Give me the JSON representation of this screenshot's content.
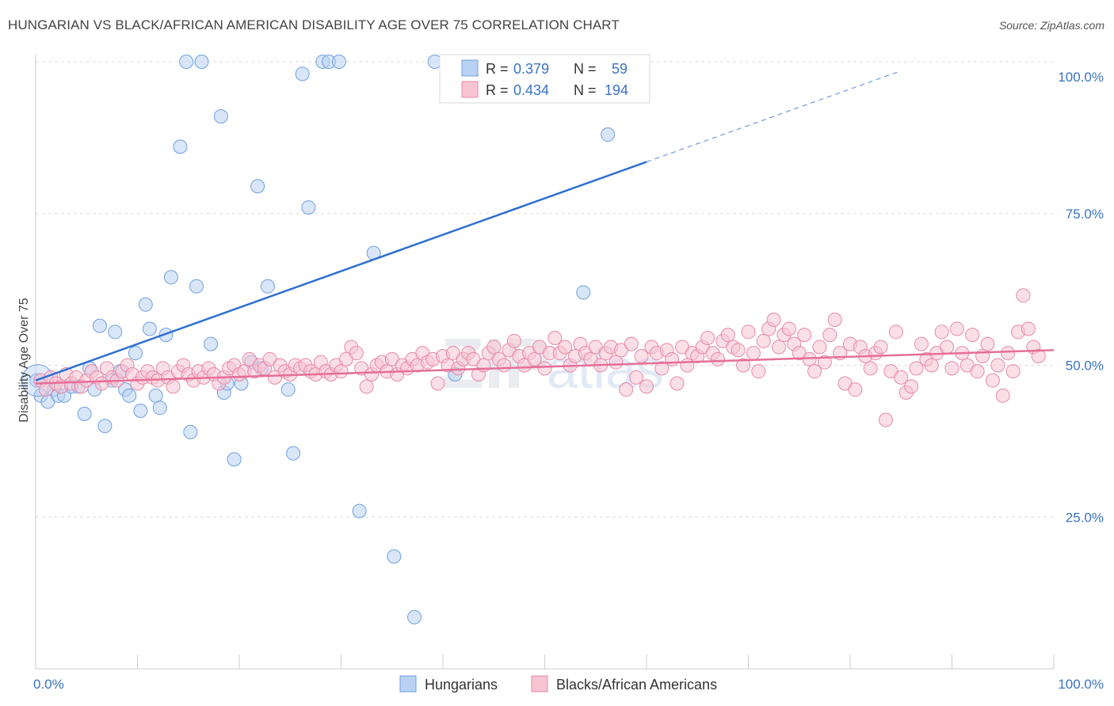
{
  "header": {
    "title": "HUNGARIAN VS BLACK/AFRICAN AMERICAN DISABILITY AGE OVER 75 CORRELATION CHART",
    "source": "Source: ZipAtlas.com"
  },
  "legend_top": {
    "rows": [
      {
        "r_label": "R =",
        "r_value": "0.379",
        "n_label": "N =",
        "n_value": "59",
        "color": "#a8c6f0"
      },
      {
        "r_label": "R =",
        "r_value": "0.434",
        "n_label": "N =",
        "n_value": "194",
        "color": "#f4b8cb"
      }
    ]
  },
  "legend_bottom": {
    "items": [
      {
        "label": "Hungarians",
        "color": "#a8c6f0"
      },
      {
        "label": "Blacks/African Americans",
        "color": "#f4b8cb"
      }
    ]
  },
  "watermark": {
    "zip": "ZIP",
    "atlas": "atlas"
  },
  "chart_data": {
    "type": "scatter",
    "title": "HUNGARIAN VS BLACK/AFRICAN AMERICAN DISABILITY AGE OVER 75 CORRELATION CHART",
    "xlabel": "",
    "ylabel": "Disability Age Over 75",
    "xlim": [
      0,
      100
    ],
    "ylim": [
      0,
      100
    ],
    "x_tick_labels": [
      "0.0%",
      "100.0%"
    ],
    "y_ticks": [
      25,
      50,
      75,
      100
    ],
    "y_tick_labels": [
      "25.0%",
      "50.0%",
      "75.0%",
      "100.0%"
    ],
    "grid": true,
    "legend_position": "top-center",
    "series": [
      {
        "name": "Hungarians",
        "color": "#6fa0e0",
        "fill": "#b9d1f3",
        "trend": {
          "x0": 0,
          "y0": 47.5,
          "x1": 60,
          "y1": 83.5,
          "dashed_to_x": 85,
          "dashed_to_y": 98.5,
          "color": "#2e6fd0"
        },
        "points": [
          [
            0.1,
            47.5
          ],
          [
            0.5,
            45
          ],
          [
            1.2,
            44
          ],
          [
            1.8,
            46
          ],
          [
            2.2,
            45
          ],
          [
            2.8,
            45
          ],
          [
            3.5,
            46.5
          ],
          [
            4.2,
            46.5
          ],
          [
            4.8,
            42
          ],
          [
            5.3,
            49.5
          ],
          [
            5.8,
            46
          ],
          [
            6.3,
            56.5
          ],
          [
            6.8,
            40
          ],
          [
            7.5,
            47.5
          ],
          [
            7.8,
            55.5
          ],
          [
            8.3,
            49
          ],
          [
            8.8,
            46
          ],
          [
            9.2,
            45
          ],
          [
            9.8,
            52
          ],
          [
            10.3,
            42.5
          ],
          [
            10.8,
            60
          ],
          [
            11.2,
            56
          ],
          [
            11.8,
            45
          ],
          [
            12.2,
            43
          ],
          [
            12.8,
            55
          ],
          [
            13.3,
            64.5
          ],
          [
            14.2,
            86
          ],
          [
            14.8,
            100
          ],
          [
            15.2,
            39
          ],
          [
            15.8,
            63
          ],
          [
            16.3,
            100
          ],
          [
            17.2,
            53.5
          ],
          [
            18.2,
            91
          ],
          [
            18.5,
            45.5
          ],
          [
            18.8,
            47
          ],
          [
            19.5,
            34.5
          ],
          [
            20.2,
            47
          ],
          [
            21.2,
            50.5
          ],
          [
            21.8,
            79.5
          ],
          [
            22.2,
            49.5
          ],
          [
            22.8,
            63
          ],
          [
            24.8,
            46
          ],
          [
            25.3,
            35.5
          ],
          [
            26.2,
            98
          ],
          [
            26.8,
            76
          ],
          [
            28.2,
            100
          ],
          [
            28.8,
            100
          ],
          [
            29.8,
            100
          ],
          [
            31.8,
            26
          ],
          [
            33.2,
            68.5
          ],
          [
            35.2,
            18.5
          ],
          [
            37.2,
            8.5
          ],
          [
            39.2,
            100
          ],
          [
            41.2,
            48.5
          ],
          [
            43.2,
            100
          ],
          [
            53.8,
            62
          ],
          [
            56.2,
            88
          ]
        ]
      },
      {
        "name": "Blacks/African Americans",
        "color": "#e889a8",
        "fill": "#f7c4d4",
        "trend": {
          "x0": 0,
          "y0": 47,
          "x1": 100,
          "y1": 52.5,
          "color": "#e56f97"
        },
        "points": [
          [
            0.5,
            47.5
          ],
          [
            1.0,
            46
          ],
          [
            1.5,
            48
          ],
          [
            2.0,
            47
          ],
          [
            2.5,
            46.5
          ],
          [
            3.0,
            48.5
          ],
          [
            3.5,
            47
          ],
          [
            4.0,
            48
          ],
          [
            4.5,
            46.5
          ],
          [
            5.0,
            47.5
          ],
          [
            5.5,
            49
          ],
          [
            6.0,
            48
          ],
          [
            6.5,
            47
          ],
          [
            7.0,
            49.5
          ],
          [
            7.5,
            48
          ],
          [
            8.0,
            47.5
          ],
          [
            8.5,
            49
          ],
          [
            9.0,
            50
          ],
          [
            9.5,
            48.5
          ],
          [
            10.0,
            47
          ],
          [
            10.5,
            48
          ],
          [
            11.0,
            49
          ],
          [
            11.5,
            48
          ],
          [
            12.0,
            47.5
          ],
          [
            12.5,
            49.5
          ],
          [
            13.0,
            48
          ],
          [
            13.5,
            46.5
          ],
          [
            14.0,
            49
          ],
          [
            14.5,
            50
          ],
          [
            15.0,
            48.5
          ],
          [
            15.5,
            47.5
          ],
          [
            16.0,
            49
          ],
          [
            16.5,
            48
          ],
          [
            17.0,
            49.5
          ],
          [
            17.5,
            48.5
          ],
          [
            18.0,
            47
          ],
          [
            18.5,
            48
          ],
          [
            19.0,
            49.5
          ],
          [
            19.5,
            50
          ],
          [
            20.0,
            48.5
          ],
          [
            20.5,
            49
          ],
          [
            21.0,
            51
          ],
          [
            21.5,
            49
          ],
          [
            22.0,
            50
          ],
          [
            22.5,
            49.5
          ],
          [
            23.0,
            51
          ],
          [
            23.5,
            48
          ],
          [
            24.0,
            50
          ],
          [
            24.5,
            49
          ],
          [
            25.0,
            48.5
          ],
          [
            25.5,
            50
          ],
          [
            26.0,
            49.5
          ],
          [
            26.5,
            50
          ],
          [
            27.0,
            49
          ],
          [
            27.5,
            48.5
          ],
          [
            28.0,
            50.5
          ],
          [
            28.5,
            49
          ],
          [
            29.0,
            48.5
          ],
          [
            29.5,
            50
          ],
          [
            30.0,
            49
          ],
          [
            30.5,
            51
          ],
          [
            31.0,
            53
          ],
          [
            31.5,
            52
          ],
          [
            32.0,
            49.5
          ],
          [
            32.5,
            46.5
          ],
          [
            33.0,
            48.5
          ],
          [
            33.5,
            50
          ],
          [
            34.0,
            50.5
          ],
          [
            34.5,
            49
          ],
          [
            35.0,
            51
          ],
          [
            35.5,
            48.5
          ],
          [
            36.0,
            50
          ],
          [
            36.5,
            49.5
          ],
          [
            37.0,
            51
          ],
          [
            37.5,
            50
          ],
          [
            38.0,
            52
          ],
          [
            38.5,
            50.5
          ],
          [
            39.0,
            51
          ],
          [
            39.5,
            47
          ],
          [
            40.0,
            51.5
          ],
          [
            40.5,
            50
          ],
          [
            41.0,
            52
          ],
          [
            41.5,
            49.5
          ],
          [
            42.0,
            51
          ],
          [
            42.5,
            52
          ],
          [
            43.0,
            51
          ],
          [
            43.5,
            48.5
          ],
          [
            44.0,
            50
          ],
          [
            44.5,
            52
          ],
          [
            45.0,
            53
          ],
          [
            45.5,
            51
          ],
          [
            46.0,
            50
          ],
          [
            46.5,
            52.5
          ],
          [
            47.0,
            54
          ],
          [
            47.5,
            51.5
          ],
          [
            48.0,
            50
          ],
          [
            48.5,
            52
          ],
          [
            49.0,
            51
          ],
          [
            49.5,
            53
          ],
          [
            50.0,
            49.5
          ],
          [
            50.5,
            52
          ],
          [
            51.0,
            54.5
          ],
          [
            51.5,
            52
          ],
          [
            52.0,
            53
          ],
          [
            52.5,
            50
          ],
          [
            53.0,
            51.5
          ],
          [
            53.5,
            53.5
          ],
          [
            54.0,
            52
          ],
          [
            54.5,
            51
          ],
          [
            55.0,
            53
          ],
          [
            55.5,
            50
          ],
          [
            56.0,
            52
          ],
          [
            56.5,
            53
          ],
          [
            57.0,
            50.5
          ],
          [
            57.5,
            52.5
          ],
          [
            58.0,
            46
          ],
          [
            58.5,
            53.5
          ],
          [
            59.0,
            48
          ],
          [
            59.5,
            51.5
          ],
          [
            60.0,
            46.5
          ],
          [
            60.5,
            53
          ],
          [
            61.0,
            52
          ],
          [
            61.5,
            49.5
          ],
          [
            62.0,
            52.5
          ],
          [
            62.5,
            51
          ],
          [
            63.0,
            47
          ],
          [
            63.5,
            53
          ],
          [
            64.0,
            50
          ],
          [
            64.5,
            52
          ],
          [
            65.0,
            51.5
          ],
          [
            65.5,
            53
          ],
          [
            66.0,
            54.5
          ],
          [
            66.5,
            52
          ],
          [
            67.0,
            51
          ],
          [
            67.5,
            54
          ],
          [
            68.0,
            55
          ],
          [
            68.5,
            53
          ],
          [
            69.0,
            52.5
          ],
          [
            69.5,
            50
          ],
          [
            70.0,
            55.5
          ],
          [
            70.5,
            52
          ],
          [
            71.0,
            49
          ],
          [
            71.5,
            54
          ],
          [
            72.0,
            56
          ],
          [
            72.5,
            57.5
          ],
          [
            73.0,
            53
          ],
          [
            73.5,
            55
          ],
          [
            74.0,
            56
          ],
          [
            74.5,
            53.5
          ],
          [
            75.0,
            52
          ],
          [
            75.5,
            55
          ],
          [
            76.0,
            51
          ],
          [
            76.5,
            49
          ],
          [
            77.0,
            53
          ],
          [
            77.5,
            50.5
          ],
          [
            78.0,
            55
          ],
          [
            78.5,
            57.5
          ],
          [
            79.0,
            52
          ],
          [
            79.5,
            47
          ],
          [
            80.0,
            53.5
          ],
          [
            80.5,
            46
          ],
          [
            81.0,
            53
          ],
          [
            81.5,
            51.5
          ],
          [
            82.0,
            49.5
          ],
          [
            82.5,
            52
          ],
          [
            83.0,
            53
          ],
          [
            83.5,
            41
          ],
          [
            84.0,
            49
          ],
          [
            84.5,
            55.5
          ],
          [
            85.0,
            48
          ],
          [
            85.5,
            45.5
          ],
          [
            86.0,
            46.5
          ],
          [
            86.5,
            49.5
          ],
          [
            87.0,
            53.5
          ],
          [
            87.5,
            51
          ],
          [
            88.0,
            50
          ],
          [
            88.5,
            52
          ],
          [
            89.0,
            55.5
          ],
          [
            89.5,
            53
          ],
          [
            90.0,
            49.5
          ],
          [
            90.5,
            56
          ],
          [
            91.0,
            52
          ],
          [
            91.5,
            50
          ],
          [
            92.0,
            55
          ],
          [
            92.5,
            49
          ],
          [
            93.0,
            51.5
          ],
          [
            93.5,
            53.5
          ],
          [
            94.0,
            47.5
          ],
          [
            94.5,
            50
          ],
          [
            95.0,
            45
          ],
          [
            95.5,
            52
          ],
          [
            96.0,
            49
          ],
          [
            96.5,
            55.5
          ],
          [
            97.0,
            61.5
          ],
          [
            97.5,
            56
          ],
          [
            98.0,
            53
          ],
          [
            98.5,
            51.5
          ]
        ]
      }
    ]
  }
}
